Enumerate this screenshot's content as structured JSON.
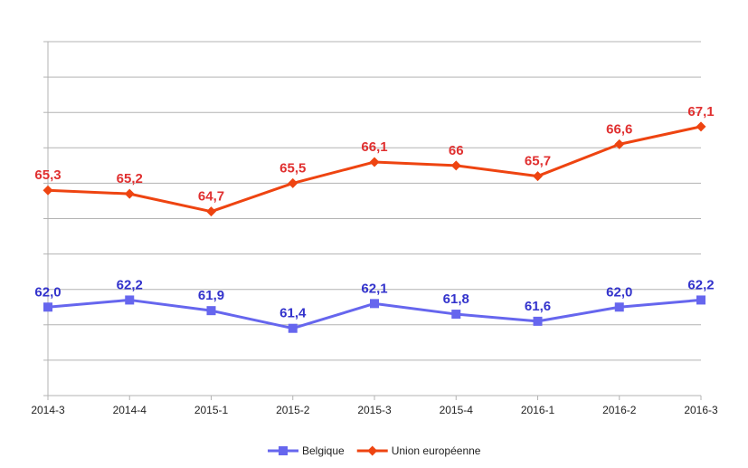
{
  "chart_data": {
    "type": "line",
    "categories": [
      "2014-3",
      "2014-4",
      "2015-1",
      "2015-2",
      "2015-3",
      "2015-4",
      "2016-1",
      "2016-2",
      "2016-3"
    ],
    "series": [
      {
        "name": "Belgique",
        "color": "#6666ee",
        "label_color": "#3333cc",
        "marker": "square",
        "values": [
          62.0,
          62.2,
          61.9,
          61.4,
          62.1,
          61.8,
          61.6,
          62.0,
          62.2
        ],
        "labels": [
          "62,0",
          "62,2",
          "61,9",
          "61,4",
          "62,1",
          "61,8",
          "61,6",
          "62,0",
          "62,2"
        ]
      },
      {
        "name": "Union européenne",
        "color": "#ee4411",
        "label_color": "#e03030",
        "marker": "diamond",
        "values": [
          65.3,
          65.2,
          64.7,
          65.5,
          66.1,
          66.0,
          65.7,
          66.6,
          67.1
        ],
        "labels": [
          "65,3",
          "65,2",
          "64,7",
          "65,5",
          "66,1",
          "66",
          "65,7",
          "66,6",
          "67,1"
        ]
      }
    ],
    "ylim": [
      59.5,
      69.5
    ],
    "y_tick_step": 1,
    "y_tick_labels_shown": false,
    "grid": true,
    "legend_position": "bottom"
  }
}
